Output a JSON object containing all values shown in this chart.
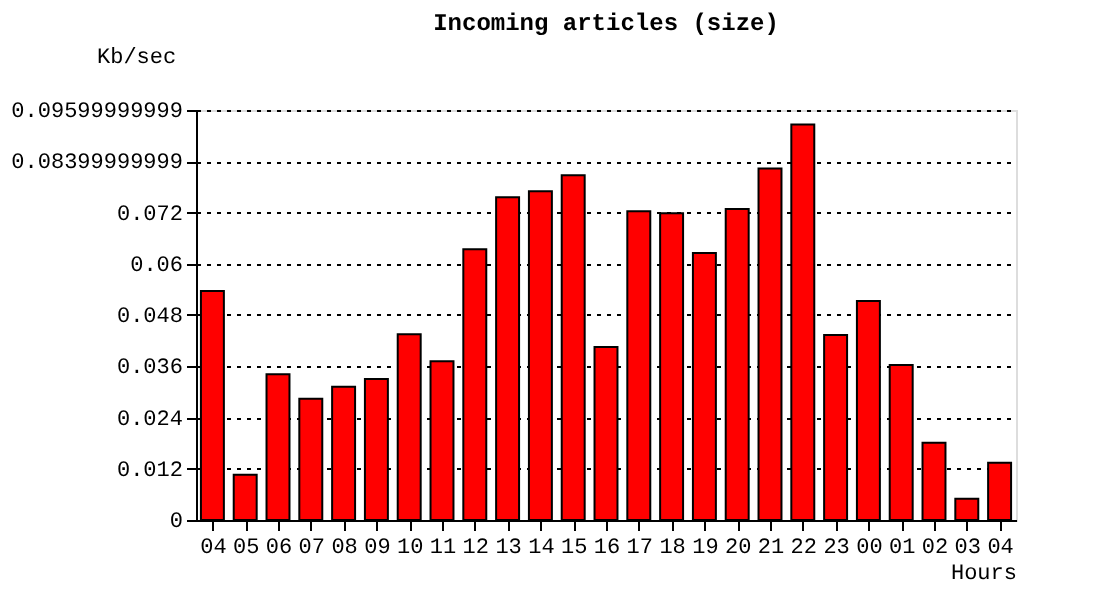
{
  "chart_data": {
    "type": "bar",
    "title": "Incoming articles (size)",
    "xlabel": "Hours",
    "ylabel": "Kb/sec",
    "categories": [
      "04",
      "05",
      "06",
      "07",
      "08",
      "09",
      "10",
      "11",
      "12",
      "13",
      "14",
      "15",
      "16",
      "17",
      "18",
      "19",
      "20",
      "21",
      "22",
      "23",
      "00",
      "01",
      "02",
      "03",
      "04"
    ],
    "values": [
      0.0536,
      0.0106,
      0.0341,
      0.0284,
      0.0312,
      0.033,
      0.0435,
      0.0372,
      0.0634,
      0.0756,
      0.077,
      0.0807,
      0.0405,
      0.0723,
      0.0718,
      0.0625,
      0.0728,
      0.0823,
      0.0926,
      0.0433,
      0.0513,
      0.0363,
      0.0181,
      0.005,
      0.0134
    ],
    "color": "#ff0000",
    "ylim": [
      0,
      0.09599999999
    ],
    "yticks": [
      0,
      0.012,
      0.024,
      0.036,
      0.048,
      0.06,
      0.072,
      0.08399999999,
      0.09599999999
    ],
    "grid": "y"
  }
}
